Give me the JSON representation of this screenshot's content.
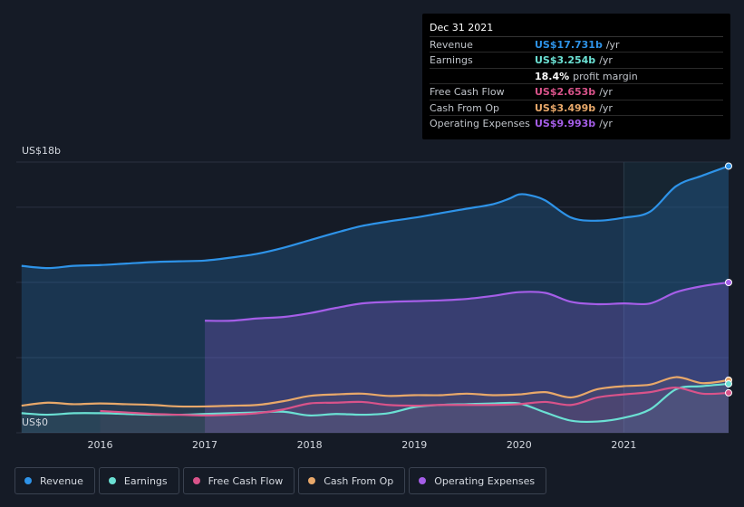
{
  "tooltip": {
    "date": "Dec 31 2021",
    "rows": [
      {
        "label": "Revenue",
        "value": "US$17.731b",
        "unit": "/yr",
        "color": "#2e93e8"
      },
      {
        "label": "Earnings",
        "value": "US$3.254b",
        "unit": "/yr",
        "color": "#6be0d3"
      },
      {
        "label": "",
        "value": "18.4%",
        "unit": "profit margin",
        "color": "#ffffff"
      },
      {
        "label": "Free Cash Flow",
        "value": "US$2.653b",
        "unit": "/yr",
        "color": "#d9538a"
      },
      {
        "label": "Cash From Op",
        "value": "US$3.499b",
        "unit": "/yr",
        "color": "#e8a86a"
      },
      {
        "label": "Operating Expenses",
        "value": "US$9.993b",
        "unit": "/yr",
        "color": "#a55ee8"
      }
    ]
  },
  "legend": [
    {
      "label": "Revenue",
      "color": "#2e93e8"
    },
    {
      "label": "Earnings",
      "color": "#6be0d3"
    },
    {
      "label": "Free Cash Flow",
      "color": "#d9538a"
    },
    {
      "label": "Cash From Op",
      "color": "#e8a86a"
    },
    {
      "label": "Operating Expenses",
      "color": "#a55ee8"
    }
  ],
  "chart_data": {
    "type": "area",
    "title": "",
    "y_top_label": "US$18b",
    "y_bottom_label": "US$0",
    "ylim": [
      0,
      18
    ],
    "xlim": [
      2015.2,
      2022.0
    ],
    "x_ticks": [
      {
        "value": 2016,
        "label": "2016"
      },
      {
        "value": 2017,
        "label": "2017"
      },
      {
        "value": 2018,
        "label": "2018"
      },
      {
        "value": 2019,
        "label": "2019"
      },
      {
        "value": 2020,
        "label": "2020"
      },
      {
        "value": 2021,
        "label": "2021"
      }
    ],
    "series": [
      {
        "name": "Revenue",
        "color": "#2e93e8",
        "fill": true,
        "x": [
          2015.25,
          2015.5,
          2015.75,
          2016.0,
          2016.25,
          2016.5,
          2016.75,
          2017.0,
          2017.25,
          2017.5,
          2017.75,
          2018.0,
          2018.25,
          2018.5,
          2018.75,
          2019.0,
          2019.25,
          2019.5,
          2019.75,
          2019.9,
          2020.0,
          2020.1,
          2020.25,
          2020.5,
          2020.75,
          2021.0,
          2021.25,
          2021.5,
          2021.75,
          2022.0
        ],
        "values": [
          11.1,
          10.95,
          11.1,
          11.15,
          11.25,
          11.35,
          11.4,
          11.45,
          11.65,
          11.9,
          12.3,
          12.8,
          13.3,
          13.75,
          14.05,
          14.3,
          14.6,
          14.9,
          15.2,
          15.55,
          15.85,
          15.8,
          15.45,
          14.3,
          14.1,
          14.3,
          14.7,
          16.4,
          17.1,
          17.731
        ]
      },
      {
        "name": "Operating Expenses",
        "color": "#a55ee8",
        "fill": true,
        "x": [
          2017.0,
          2017.25,
          2017.5,
          2017.75,
          2018.0,
          2018.25,
          2018.5,
          2018.75,
          2019.0,
          2019.25,
          2019.5,
          2019.75,
          2020.0,
          2020.25,
          2020.5,
          2020.75,
          2021.0,
          2021.25,
          2021.5,
          2021.75,
          2022.0
        ],
        "values": [
          7.45,
          7.45,
          7.6,
          7.7,
          7.95,
          8.3,
          8.6,
          8.7,
          8.75,
          8.8,
          8.9,
          9.1,
          9.35,
          9.3,
          8.7,
          8.55,
          8.6,
          8.6,
          9.35,
          9.75,
          9.993
        ]
      },
      {
        "name": "Cash From Op",
        "color": "#e8a86a",
        "fill": false,
        "x": [
          2015.25,
          2015.5,
          2015.75,
          2016.0,
          2016.25,
          2016.5,
          2016.75,
          2017.0,
          2017.25,
          2017.5,
          2017.75,
          2018.0,
          2018.25,
          2018.5,
          2018.75,
          2019.0,
          2019.25,
          2019.5,
          2019.75,
          2020.0,
          2020.25,
          2020.5,
          2020.75,
          2021.0,
          2021.25,
          2021.5,
          2021.75,
          2022.0
        ],
        "values": [
          1.8,
          2.0,
          1.9,
          1.95,
          1.9,
          1.85,
          1.75,
          1.75,
          1.8,
          1.85,
          2.1,
          2.45,
          2.55,
          2.6,
          2.45,
          2.5,
          2.5,
          2.6,
          2.5,
          2.55,
          2.7,
          2.35,
          2.9,
          3.1,
          3.2,
          3.7,
          3.3,
          3.499
        ]
      },
      {
        "name": "Earnings",
        "color": "#6be0d3",
        "fill": false,
        "x": [
          2015.25,
          2015.5,
          2015.75,
          2016.0,
          2016.25,
          2016.5,
          2016.75,
          2017.0,
          2017.25,
          2017.5,
          2017.75,
          2018.0,
          2018.25,
          2018.5,
          2018.75,
          2019.0,
          2019.25,
          2019.5,
          2019.75,
          2020.0,
          2020.25,
          2020.5,
          2020.75,
          2021.0,
          2021.25,
          2021.5,
          2021.75,
          2022.0
        ],
        "values": [
          1.3,
          1.2,
          1.3,
          1.3,
          1.25,
          1.2,
          1.2,
          1.25,
          1.3,
          1.35,
          1.4,
          1.15,
          1.25,
          1.2,
          1.3,
          1.7,
          1.85,
          1.9,
          1.95,
          1.95,
          1.35,
          0.8,
          0.75,
          1.0,
          1.55,
          2.9,
          3.1,
          3.254
        ]
      },
      {
        "name": "Free Cash Flow",
        "color": "#d9538a",
        "fill": false,
        "x": [
          2016.0,
          2016.25,
          2016.5,
          2016.75,
          2017.0,
          2017.25,
          2017.5,
          2017.75,
          2018.0,
          2018.25,
          2018.5,
          2018.75,
          2019.0,
          2019.25,
          2019.5,
          2019.75,
          2020.0,
          2020.25,
          2020.5,
          2020.75,
          2021.0,
          2021.25,
          2021.5,
          2021.75,
          2022.0
        ],
        "values": [
          1.45,
          1.35,
          1.25,
          1.2,
          1.15,
          1.2,
          1.3,
          1.55,
          1.95,
          2.0,
          2.05,
          1.85,
          1.8,
          1.85,
          1.85,
          1.85,
          1.9,
          2.05,
          1.85,
          2.35,
          2.55,
          2.7,
          3.0,
          2.6,
          2.653
        ]
      }
    ]
  }
}
